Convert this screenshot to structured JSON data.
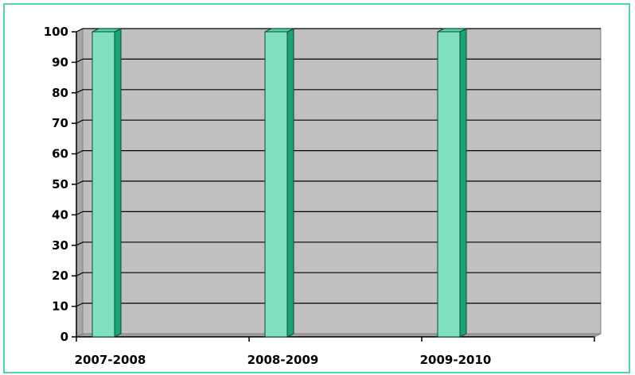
{
  "chart_data": {
    "type": "bar",
    "categories": [
      "2007-2008",
      "2008-2009",
      "2009-2010"
    ],
    "values": [
      100,
      100,
      100
    ],
    "ylim": [
      0,
      100
    ],
    "yticks": [
      0,
      10,
      20,
      30,
      40,
      50,
      60,
      70,
      80,
      90,
      100
    ],
    "grid": true,
    "legend": "none",
    "colors": {
      "bar_front": "#80e0c0",
      "bar_side": "#1aa378",
      "bar_top": "#4fd6a4",
      "plot_bg": "#c0c0c0",
      "plot_side": "#a8a8a8",
      "border": "#4fd6a4"
    }
  }
}
